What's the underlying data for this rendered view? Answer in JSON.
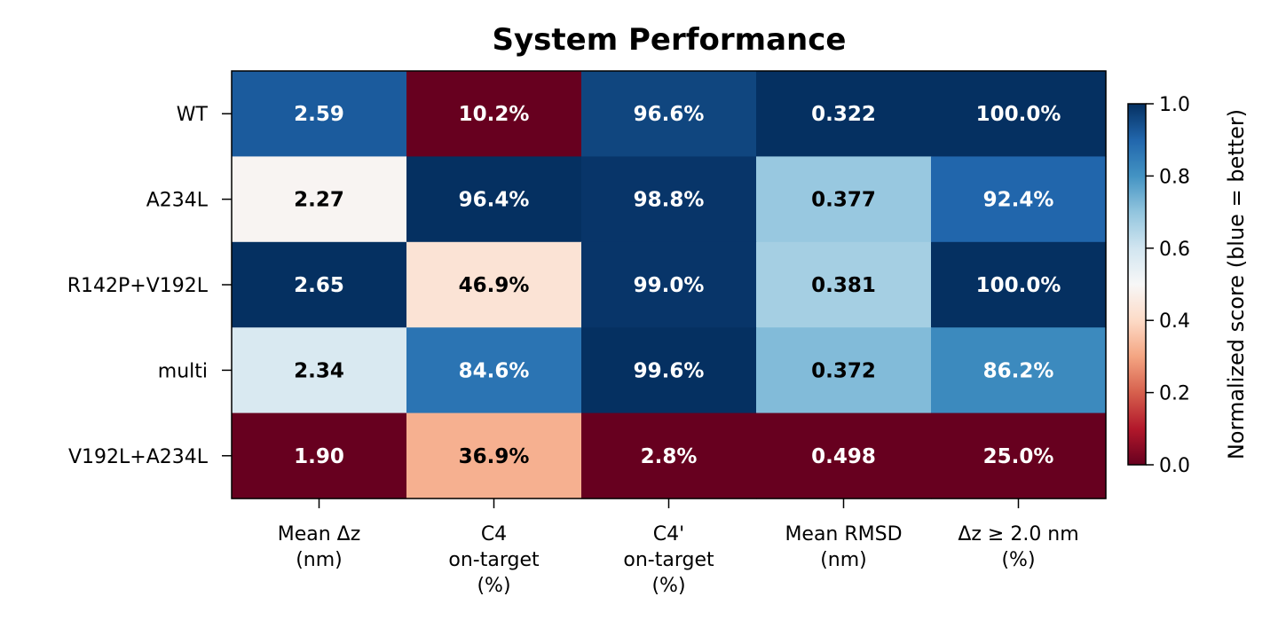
{
  "chart_data": {
    "type": "heatmap",
    "title": "System Performance",
    "rows": [
      "WT",
      "A234L",
      "R142P+V192L",
      "multi",
      "V192L+A234L"
    ],
    "columns": [
      [
        "Mean Δz",
        "(nm)"
      ],
      [
        "C4",
        "on-target",
        "(%)"
      ],
      [
        "C4'",
        "on-target",
        "(%)"
      ],
      [
        "Mean RMSD",
        "(nm)"
      ],
      [
        "Δz ≥ 2.0 nm",
        "(%)"
      ]
    ],
    "cell_labels": [
      [
        "2.59",
        "10.2%",
        "96.6%",
        "0.322",
        "100.0%"
      ],
      [
        "2.27",
        "96.4%",
        "98.8%",
        "0.377",
        "92.4%"
      ],
      [
        "2.65",
        "46.9%",
        "99.0%",
        "0.381",
        "100.0%"
      ],
      [
        "2.34",
        "84.6%",
        "99.6%",
        "0.372",
        "86.2%"
      ],
      [
        "1.90",
        "36.9%",
        "2.8%",
        "0.498",
        "25.0%"
      ]
    ],
    "normalized_scores": [
      [
        0.92,
        0.0,
        0.96,
        1.0,
        1.0
      ],
      [
        0.49,
        1.0,
        0.99,
        0.69,
        0.9
      ],
      [
        1.0,
        0.43,
        0.99,
        0.67,
        1.0
      ],
      [
        0.58,
        0.87,
        1.0,
        0.72,
        0.82
      ],
      [
        0.0,
        0.32,
        0.0,
        0.0,
        0.0
      ]
    ],
    "colormap": "RdBu",
    "colorbar": {
      "label": "Normalized score (blue = better)",
      "range": [
        0.0,
        1.0
      ],
      "ticks": [
        "0.0",
        "0.2",
        "0.4",
        "0.6",
        "0.8",
        "1.0"
      ]
    },
    "text_colors": {
      "light": "#ffffff",
      "dark": "#000000"
    }
  }
}
